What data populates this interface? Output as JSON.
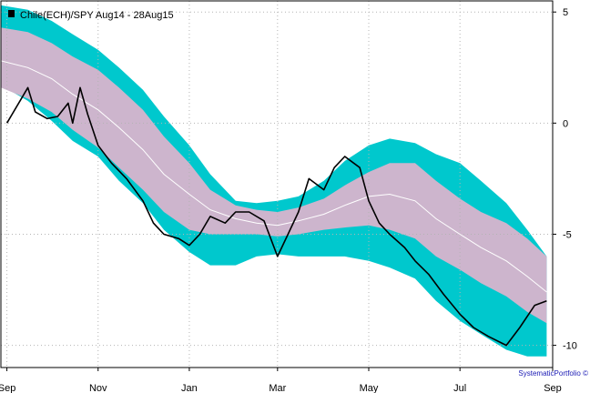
{
  "chart_data": {
    "type": "line",
    "title": "Chile(ECH)/SPY Aug14 - 28Aug15",
    "credit": "SystematicPortfolio ©",
    "legend_placement": "top-left",
    "grid": true,
    "ylim": [
      -11,
      5.5
    ],
    "y_ticks": [
      5,
      0,
      -5,
      -10
    ],
    "y_tick_labels": [
      "5",
      "0",
      "-5",
      "-10"
    ],
    "x_ticks": [
      "Sep",
      "Nov",
      "Jan",
      "Mar",
      "May",
      "Jul",
      "Sep"
    ],
    "colors": {
      "outer_band": "#00c8cd",
      "inner_band": "#cdb5cd",
      "center_line": "#ffffff",
      "price_line": "#000000",
      "grid": "#b4b4b4",
      "legend_swatch": "#000000"
    },
    "series": [
      {
        "name": "Chile(ECH)/SPY Aug14 - 28Aug15",
        "role": "price",
        "x": [
          "2014-09-01",
          "2014-09-15",
          "2014-09-20",
          "2014-09-28",
          "2014-10-05",
          "2014-10-12",
          "2014-10-15",
          "2014-10-20",
          "2014-10-25",
          "2014-11-01",
          "2014-11-10",
          "2014-11-20",
          "2014-12-01",
          "2014-12-08",
          "2014-12-15",
          "2014-12-25",
          "2015-01-01",
          "2015-01-08",
          "2015-01-15",
          "2015-01-25",
          "2015-02-01",
          "2015-02-10",
          "2015-02-20",
          "2015-03-01",
          "2015-03-08",
          "2015-03-15",
          "2015-03-22",
          "2015-04-01",
          "2015-04-08",
          "2015-04-15",
          "2015-04-25",
          "2015-05-01",
          "2015-05-08",
          "2015-05-15",
          "2015-05-25",
          "2015-06-01",
          "2015-06-10",
          "2015-06-20",
          "2015-07-01",
          "2015-07-10",
          "2015-07-20",
          "2015-08-01",
          "2015-08-10",
          "2015-08-20",
          "2015-08-28"
        ],
        "values": [
          0,
          1.6,
          0.5,
          0.2,
          0.3,
          0.9,
          0,
          1.6,
          0.4,
          -1,
          -1.8,
          -2.5,
          -3.5,
          -4.5,
          -5,
          -5.2,
          -5.5,
          -5,
          -4.2,
          -4.5,
          -4,
          -4,
          -4.4,
          -6,
          -5,
          -4,
          -2.5,
          -3,
          -2,
          -1.5,
          -2,
          -3.5,
          -4.5,
          -5,
          -5.6,
          -6.2,
          -6.8,
          -7.7,
          -8.6,
          -9.2,
          -9.6,
          -10,
          -9.2,
          -8.2,
          -8
        ]
      },
      {
        "name": "",
        "role": "center",
        "x": [
          "2014-08-28",
          "2014-09-15",
          "2014-10-01",
          "2014-10-15",
          "2014-11-01",
          "2014-11-15",
          "2014-12-01",
          "2014-12-15",
          "2015-01-01",
          "2015-01-15",
          "2015-02-01",
          "2015-02-15",
          "2015-03-01",
          "2015-03-15",
          "2015-04-01",
          "2015-04-15",
          "2015-05-01",
          "2015-05-15",
          "2015-06-01",
          "2015-06-15",
          "2015-07-01",
          "2015-07-15",
          "2015-08-01",
          "2015-08-15",
          "2015-08-28"
        ],
        "values": [
          2.8,
          2.5,
          2.0,
          1.3,
          0.6,
          -0.2,
          -1.2,
          -2.3,
          -3.2,
          -3.9,
          -4.3,
          -4.5,
          -4.6,
          -4.4,
          -4.1,
          -3.7,
          -3.3,
          -3.2,
          -3.5,
          -4.3,
          -5.0,
          -5.6,
          -6.2,
          -6.9,
          -7.6
        ]
      },
      {
        "name": "",
        "role": "inner_band",
        "x": [
          "2014-08-28",
          "2014-09-15",
          "2014-10-01",
          "2014-10-15",
          "2014-11-01",
          "2014-11-15",
          "2014-12-01",
          "2014-12-15",
          "2015-01-01",
          "2015-01-15",
          "2015-02-01",
          "2015-02-15",
          "2015-03-01",
          "2015-03-15",
          "2015-04-01",
          "2015-04-15",
          "2015-05-01",
          "2015-05-15",
          "2015-06-01",
          "2015-06-15",
          "2015-07-01",
          "2015-07-15",
          "2015-08-01",
          "2015-08-15",
          "2015-08-28"
        ],
        "upper": [
          4.3,
          4.1,
          3.6,
          3.0,
          2.4,
          1.6,
          0.6,
          -0.6,
          -1.8,
          -3.0,
          -3.7,
          -3.9,
          -4.0,
          -3.8,
          -3.4,
          -2.8,
          -2.2,
          -1.8,
          -1.8,
          -2.6,
          -3.4,
          -4.0,
          -4.5,
          -5.2,
          -6.0
        ],
        "lower": [
          1.6,
          1.1,
          0.5,
          -0.3,
          -1.1,
          -2.0,
          -3.0,
          -4.0,
          -4.8,
          -5.0,
          -5.0,
          -5.0,
          -5.1,
          -5.0,
          -4.8,
          -4.7,
          -4.6,
          -4.8,
          -5.2,
          -6.0,
          -6.6,
          -7.2,
          -7.8,
          -8.5,
          -9.0
        ]
      },
      {
        "name": "",
        "role": "outer_band",
        "x": [
          "2014-08-28",
          "2014-09-15",
          "2014-10-01",
          "2014-10-15",
          "2014-11-01",
          "2014-11-15",
          "2014-12-01",
          "2014-12-15",
          "2015-01-01",
          "2015-01-15",
          "2015-02-01",
          "2015-02-15",
          "2015-03-01",
          "2015-03-15",
          "2015-04-01",
          "2015-04-15",
          "2015-05-01",
          "2015-05-15",
          "2015-06-01",
          "2015-06-15",
          "2015-07-01",
          "2015-07-15",
          "2015-08-01",
          "2015-08-15",
          "2015-08-28"
        ],
        "upper": [
          5.3,
          5.1,
          4.6,
          4.0,
          3.3,
          2.5,
          1.5,
          0.3,
          -1.0,
          -2.3,
          -3.5,
          -3.6,
          -3.5,
          -3.3,
          -2.6,
          -1.7,
          -1.0,
          -0.7,
          -0.9,
          -1.4,
          -1.8,
          -2.6,
          -3.6,
          -4.8,
          -6.0
        ],
        "lower": [
          1.7,
          1.0,
          0.1,
          -0.8,
          -1.5,
          -2.6,
          -3.6,
          -4.8,
          -5.8,
          -6.4,
          -6.4,
          -6.0,
          -5.9,
          -6.0,
          -6.0,
          -6.0,
          -6.2,
          -6.5,
          -7.0,
          -8.0,
          -8.9,
          -9.5,
          -10.2,
          -10.5,
          -10.5
        ]
      }
    ]
  }
}
